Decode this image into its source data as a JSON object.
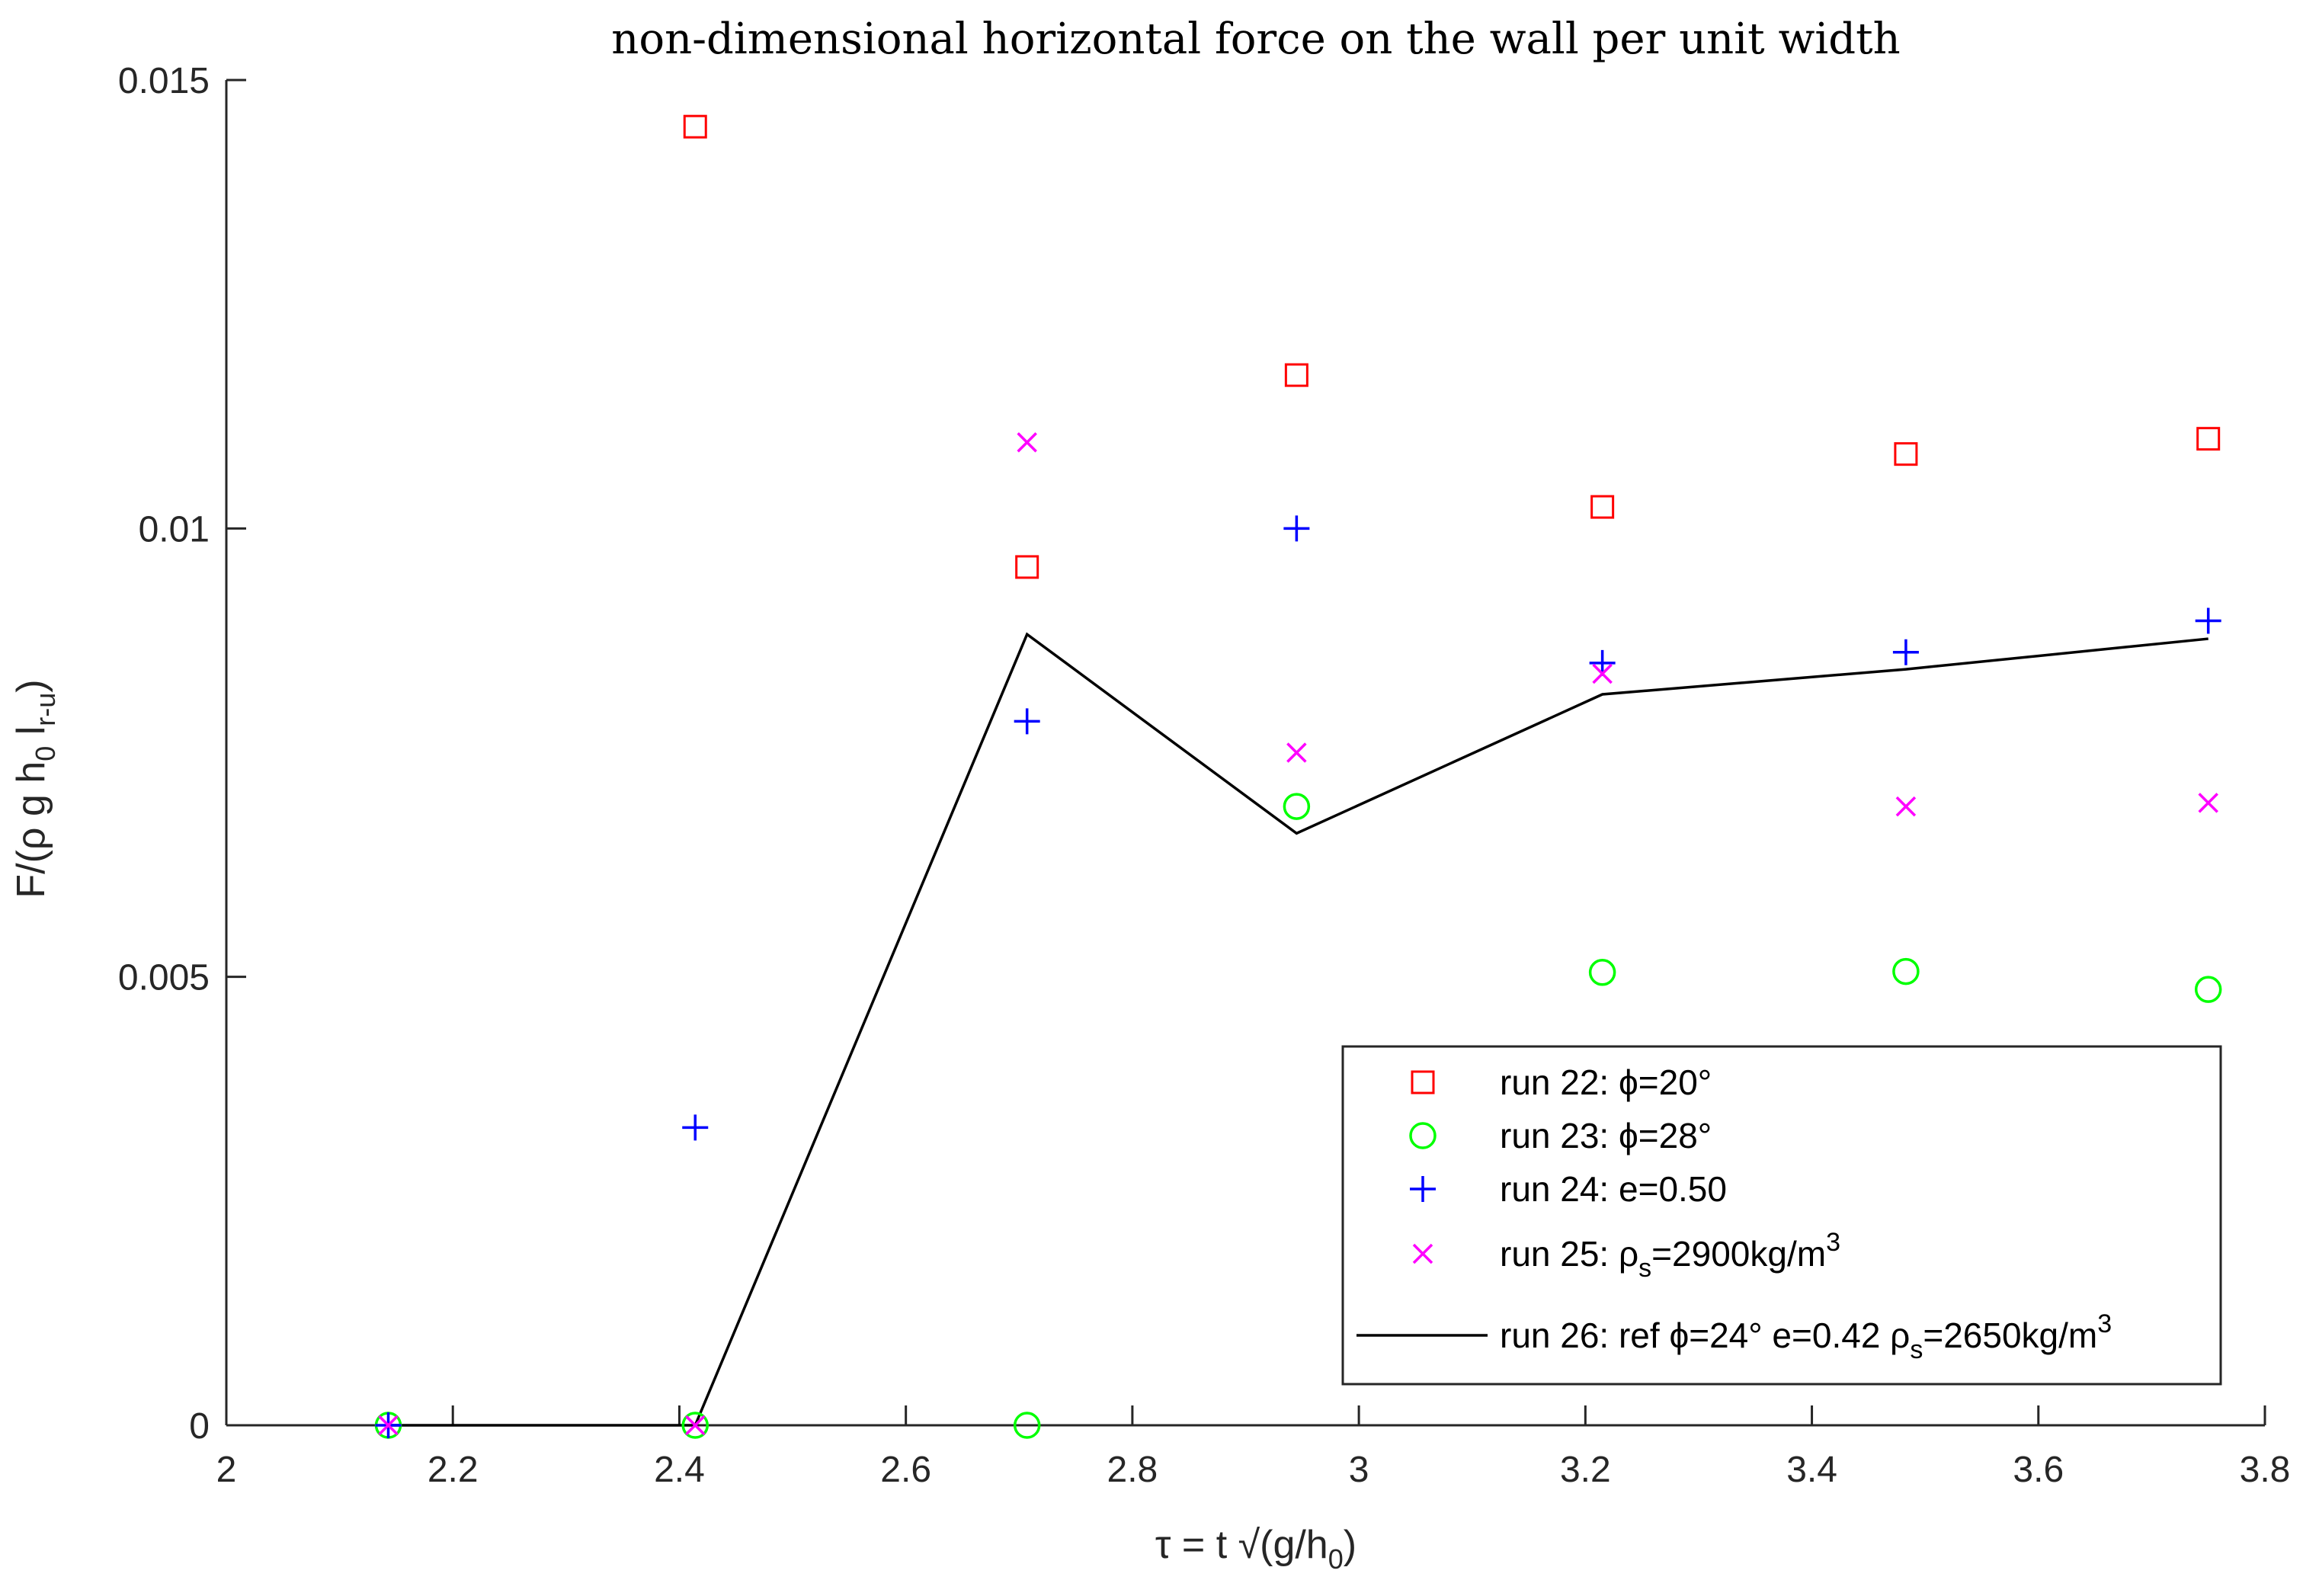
{
  "chart_data": {
    "type": "scatter",
    "title": "non-dimensional horizontal force on the wall per unit width",
    "xlabel": {
      "main": "τ = t √(g/h",
      "sub": "0",
      "close": ")"
    },
    "ylabel": {
      "main": "F/(ρ g h",
      "sub1": "0",
      "mid": " l",
      "sub2": "r-u",
      "close": ")"
    },
    "xlim": [
      2,
      3.8
    ],
    "ylim": [
      0,
      0.015
    ],
    "xticks": [
      2,
      2.2,
      2.4,
      2.6,
      2.8,
      3,
      3.2,
      3.4,
      3.6,
      3.8
    ],
    "xtick_labels": [
      "2",
      "2.2",
      "2.4",
      "2.6",
      "2.8",
      "3",
      "3.2",
      "3.4",
      "3.6",
      "3.8"
    ],
    "yticks": [
      0,
      0.005,
      0.01,
      0.015
    ],
    "ytick_labels": [
      "0",
      "0.005",
      "0.01",
      "0.015"
    ],
    "grid": false,
    "legend_position": "bottom-right",
    "series": [
      {
        "marker": "square",
        "color": "#ff0000",
        "legend": {
          "main": "run 22: ϕ=20°"
        },
        "x": [
          2.414,
          2.707,
          2.945,
          3.215,
          3.483,
          3.75
        ],
        "y": [
          0.01448,
          0.00957,
          0.01171,
          0.01024,
          0.01083,
          0.011
        ]
      },
      {
        "marker": "circle",
        "color": "#00ff00",
        "legend": {
          "main": "run 23: ϕ=28°"
        },
        "x": [
          2.143,
          2.414,
          2.707,
          2.945,
          3.215,
          3.483,
          3.75
        ],
        "y": [
          0,
          0,
          0,
          0.0069,
          0.00505,
          0.00506,
          0.00486
        ]
      },
      {
        "marker": "plus",
        "color": "#0000ff",
        "legend": {
          "main": "run 24: e=0.50"
        },
        "x": [
          2.143,
          2.414,
          2.707,
          2.945,
          3.215,
          3.483,
          3.75
        ],
        "y": [
          0,
          0.00332,
          0.00785,
          0.01,
          0.0085,
          0.00862,
          0.00897
        ]
      },
      {
        "marker": "x",
        "color": "#ff00ff",
        "legend": {
          "main": "run 25: ρ",
          "sub": "s",
          "tail": "=2900kg/m",
          "sup": "3"
        },
        "x": [
          2.143,
          2.414,
          2.707,
          2.945,
          3.215,
          3.483,
          3.75
        ],
        "y": [
          0,
          0,
          0.01096,
          0.0075,
          0.00838,
          0.0069,
          0.00694
        ]
      },
      {
        "marker": "line",
        "color": "#000000",
        "legend": {
          "main": "run 26: ref ϕ=24° e=0.42 ρ",
          "sub": "s",
          "tail": "=2650kg/m",
          "sup": "3"
        },
        "x": [
          2.143,
          2.414,
          2.707,
          2.945,
          3.215,
          3.483,
          3.75
        ],
        "y": [
          0,
          0,
          0.00882,
          0.0066,
          0.00815,
          0.00843,
          0.00877
        ]
      }
    ]
  }
}
